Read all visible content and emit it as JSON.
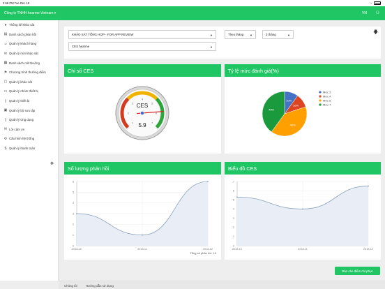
{
  "status_bar": {
    "time": "3:58 PM  Tue Dec 18"
  },
  "topbar": {
    "company": "Công ty TNHH hearme Vietnam ▾",
    "language": "VN",
    "user_icon": "user-icon"
  },
  "sidebar": {
    "items": [
      {
        "label": "Thống kê khảo sát",
        "icon": "●"
      },
      {
        "label": "Danh sách phản hồi",
        "icon": "▤"
      },
      {
        "label": "Quản lý khách hàng",
        "icon": "☺"
      },
      {
        "label": "Quản lý mời khảo sát",
        "icon": "✉"
      },
      {
        "label": "Danh sách mã thưởng",
        "icon": "▦"
      },
      {
        "label": "Chương trình thưởng điểm",
        "icon": "⚑"
      },
      {
        "label": "Quản lý khảo sát",
        "icon": "▢"
      },
      {
        "label": "Quản lý nhóm thiết bị",
        "icon": "▭"
      },
      {
        "label": "Quản lý thiết bị",
        "icon": "▯"
      },
      {
        "label": "Quản lý bộ sưu tập",
        "icon": "▣"
      },
      {
        "label": "Quản lý ứng dụng",
        "icon": "▯"
      },
      {
        "label": "Lời cảm ơn",
        "icon": "✉"
      },
      {
        "label": "Cấu hình hệ thống",
        "icon": "⚙"
      },
      {
        "label": "Quản lý thanh toán",
        "icon": "$"
      }
    ]
  },
  "filters": {
    "survey": "KHẢO SÁT TỔNG HỢP - FOR APP REVIEW",
    "period_type": "Theo tháng",
    "period_value": "3 tháng",
    "metric": "CES hearme"
  },
  "ces_card": {
    "title": "Chỉ số CES",
    "gauge_label": "CES",
    "value": "5.9",
    "gauge_value": 5.9,
    "gauge_max": 7,
    "ticks": [
      "1",
      "2",
      "3",
      "4",
      "5",
      "6",
      "7"
    ]
  },
  "pie_card": {
    "title": "Tỷ lệ mức đánh giá(%)",
    "chart_data": {
      "type": "pie",
      "categories": [
        "Mức 3",
        "Mức 4",
        "Mức 6",
        "Mức 7"
      ],
      "values": [
        10,
        10,
        40,
        40
      ],
      "labels": [
        "10%",
        "10%",
        "40%",
        "40%"
      ],
      "colors": [
        "#4472c4",
        "#dd4422",
        "#ffa000",
        "#1a9a3c"
      ],
      "legend": "right"
    }
  },
  "responses_card": {
    "title": "Số lượng phản hồi",
    "total_label": "Tổng số phản hồi: 10",
    "chart_data": {
      "type": "area",
      "categories": [
        "2018-10",
        "2018-11",
        "2018-12"
      ],
      "values": [
        3,
        1,
        6
      ],
      "ylim": [
        0,
        6
      ],
      "yticks": [
        "0",
        "1",
        "2",
        "3",
        "4",
        "5",
        "6"
      ],
      "grid": true
    }
  },
  "ces_trend_card": {
    "title": "Biểu đồ CES",
    "chart_data": {
      "type": "area",
      "categories": [
        "2018-10",
        "2018-11",
        "2018-12"
      ],
      "values": [
        5.3,
        4,
        6.5
      ],
      "ylim": [
        0,
        7
      ],
      "yticks": [
        "0",
        "1",
        "2",
        "3",
        "4",
        "5",
        "6",
        "7"
      ],
      "grid": true
    }
  },
  "action_button": "Báo cáo điểm chỉ phục",
  "footer": {
    "about": "Chúng tôi",
    "guide": "Hướng dẫn sử dụng"
  }
}
